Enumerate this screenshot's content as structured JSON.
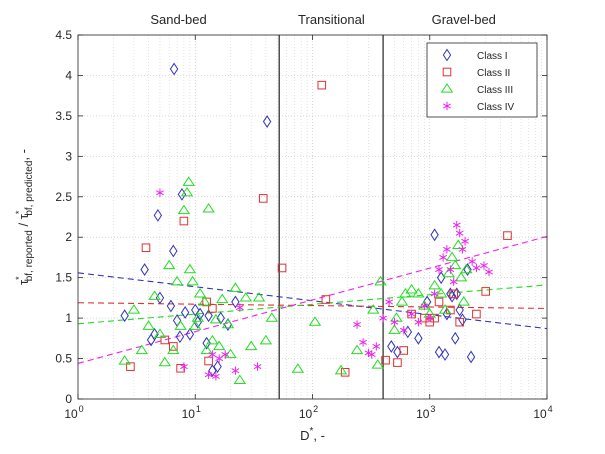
{
  "chart_data": {
    "type": "scatter",
    "x_scale": "log",
    "xlim": [
      1,
      10000
    ],
    "ylim": [
      0,
      4.5
    ],
    "grid": true,
    "legend_position": "top-right",
    "x_ticks": [
      {
        "value": 1,
        "base": "10",
        "exp": "0"
      },
      {
        "value": 10,
        "base": "10",
        "exp": "1"
      },
      {
        "value": 100,
        "base": "10",
        "exp": "2"
      },
      {
        "value": 1000,
        "base": "10",
        "exp": "3"
      },
      {
        "value": 10000,
        "base": "10",
        "exp": "4"
      }
    ],
    "y_ticks": [
      {
        "value": 0,
        "label": "0"
      },
      {
        "value": 0.5,
        "label": "0.5"
      },
      {
        "value": 1,
        "label": "1"
      },
      {
        "value": 1.5,
        "label": "1.5"
      },
      {
        "value": 2,
        "label": "2"
      },
      {
        "value": 2.5,
        "label": "2.5"
      },
      {
        "value": 3,
        "label": "3"
      },
      {
        "value": 3.5,
        "label": "3.5"
      },
      {
        "value": 4,
        "label": "4"
      },
      {
        "value": 4.5,
        "label": "4.5"
      }
    ],
    "xlabel": {
      "main": "D",
      "sup": "*",
      "rest": ", -"
    },
    "ylabel": {
      "tau": "τ",
      "sub1": "bf, reported",
      "sep": " / ",
      "sub2": "bf, predicted",
      "rest": ", -",
      "star": "*"
    },
    "boundaries": [
      52,
      400
    ],
    "regions": [
      {
        "label": "Sand-bed",
        "x": 7.2
      },
      {
        "label": "Transitional",
        "x": 145
      },
      {
        "label": "Gravel-bed",
        "x": 1950
      }
    ],
    "series": [
      {
        "name": "Class I",
        "marker": "diamond",
        "color": "#3333bb",
        "points": [
          [
            2.5,
            1.03
          ],
          [
            3.7,
            1.6
          ],
          [
            4.2,
            0.73
          ],
          [
            4.5,
            0.8
          ],
          [
            4.8,
            2.27
          ],
          [
            5.0,
            1.25
          ],
          [
            6.2,
            1.15
          ],
          [
            6.5,
            1.83
          ],
          [
            6.6,
            4.08
          ],
          [
            7.0,
            0.97
          ],
          [
            7.4,
            0.77
          ],
          [
            7.7,
            2.53
          ],
          [
            8.2,
            1.07
          ],
          [
            9.0,
            0.8
          ],
          [
            10.0,
            1.1
          ],
          [
            10.5,
            0.95
          ],
          [
            11.0,
            1.05
          ],
          [
            12.5,
            0.69
          ],
          [
            13.0,
            1.03
          ],
          [
            14.0,
            0.35
          ],
          [
            15.5,
            0.4
          ],
          [
            16.5,
            1.0
          ],
          [
            19.0,
            0.92
          ],
          [
            22.0,
            1.2
          ],
          [
            41.0,
            3.43
          ],
          [
            470,
            0.65
          ],
          [
            530,
            0.58
          ],
          [
            650,
            0.83
          ],
          [
            800,
            0.75
          ],
          [
            950,
            1.2
          ],
          [
            1100,
            2.03
          ],
          [
            1200,
            0.58
          ],
          [
            1250,
            1.5
          ],
          [
            1350,
            0.55
          ],
          [
            1400,
            1.05
          ],
          [
            1500,
            1.3
          ],
          [
            1550,
            1.27
          ],
          [
            1650,
            0.75
          ],
          [
            1700,
            1.3
          ],
          [
            1800,
            1.1
          ],
          [
            1900,
            0.98
          ],
          [
            2100,
            1.6
          ],
          [
            2250,
            0.52
          ]
        ]
      },
      {
        "name": "Class II",
        "marker": "square",
        "color": "#dd3333",
        "points": [
          [
            2.8,
            0.4
          ],
          [
            3.8,
            1.87
          ],
          [
            5.5,
            0.73
          ],
          [
            6.5,
            0.65
          ],
          [
            7.5,
            0.38
          ],
          [
            8.0,
            2.2
          ],
          [
            12.5,
            1.2
          ],
          [
            13.0,
            0.47
          ],
          [
            14.0,
            1.12
          ],
          [
            38.0,
            2.48
          ],
          [
            55.0,
            1.62
          ],
          [
            120.0,
            3.88
          ],
          [
            130.0,
            1.23
          ],
          [
            190.0,
            0.33
          ],
          [
            420,
            0.48
          ],
          [
            530,
            0.45
          ],
          [
            600,
            0.6
          ],
          [
            700,
            1.05
          ],
          [
            900,
            1.0
          ],
          [
            1000,
            0.95
          ],
          [
            1100,
            1.0
          ],
          [
            1200,
            1.2
          ],
          [
            1500,
            1.1
          ],
          [
            1600,
            1.3
          ],
          [
            1800,
            0.95
          ],
          [
            2500,
            1.05
          ],
          [
            3000,
            1.33
          ],
          [
            4600,
            2.02
          ]
        ]
      },
      {
        "name": "Class III",
        "marker": "triangle",
        "color": "#22dd22",
        "points": [
          [
            2.5,
            0.47
          ],
          [
            3.0,
            1.1
          ],
          [
            3.5,
            0.6
          ],
          [
            4.0,
            0.9
          ],
          [
            4.5,
            1.27
          ],
          [
            5.0,
            0.8
          ],
          [
            5.5,
            0.45
          ],
          [
            6.0,
            1.65
          ],
          [
            6.5,
            0.6
          ],
          [
            7.0,
            1.45
          ],
          [
            7.5,
            0.9
          ],
          [
            8.0,
            2.33
          ],
          [
            8.5,
            2.55
          ],
          [
            8.8,
            2.68
          ],
          [
            9.0,
            1.6
          ],
          [
            9.5,
            1.45
          ],
          [
            10.0,
            0.9
          ],
          [
            10.5,
            1.0
          ],
          [
            11.0,
            1.3
          ],
          [
            12.0,
            1.2
          ],
          [
            12.5,
            0.6
          ],
          [
            13.0,
            2.35
          ],
          [
            14.0,
            0.72
          ],
          [
            15.0,
            0.98
          ],
          [
            16.0,
            0.65
          ],
          [
            17.0,
            1.23
          ],
          [
            19.0,
            0.92
          ],
          [
            20.0,
            0.55
          ],
          [
            22.0,
            1.37
          ],
          [
            24.0,
            0.23
          ],
          [
            27.0,
            1.25
          ],
          [
            30.0,
            0.65
          ],
          [
            35.0,
            1.25
          ],
          [
            40.0,
            0.72
          ],
          [
            45.0,
            1.0
          ],
          [
            75.0,
            0.37
          ],
          [
            105.0,
            0.95
          ],
          [
            175.0,
            0.35
          ],
          [
            240.0,
            0.6
          ],
          [
            330.0,
            1.1
          ],
          [
            360.0,
            0.42
          ],
          [
            380.0,
            1.45
          ],
          [
            500,
            0.85
          ],
          [
            520,
            1.0
          ],
          [
            580,
            1.2
          ],
          [
            620,
            1.3
          ],
          [
            700,
            1.35
          ],
          [
            800,
            1.3
          ],
          [
            900,
            1.15
          ],
          [
            1000,
            1.05
          ],
          [
            1100,
            1.4
          ],
          [
            1250,
            1.3
          ],
          [
            1350,
            1.1
          ],
          [
            1450,
            1.55
          ],
          [
            1550,
            1.75
          ],
          [
            1650,
            1.65
          ],
          [
            1750,
            1.9
          ],
          [
            1850,
            1.5
          ],
          [
            1950,
            1.2
          ],
          [
            2050,
            1.6
          ]
        ]
      },
      {
        "name": "Class IV",
        "marker": "asterisk",
        "color": "#ee22ee",
        "points": [
          [
            5.0,
            2.55
          ],
          [
            8.0,
            0.4
          ],
          [
            13.0,
            0.3
          ],
          [
            14.0,
            0.55
          ],
          [
            15.0,
            0.28
          ],
          [
            16.0,
            0.5
          ],
          [
            18.0,
            0.55
          ],
          [
            22.0,
            0.35
          ],
          [
            24.0,
            1.13
          ],
          [
            34.0,
            0.4
          ],
          [
            240,
            0.92
          ],
          [
            270,
            0.7
          ],
          [
            300,
            0.57
          ],
          [
            320,
            0.55
          ],
          [
            350,
            0.65
          ],
          [
            400,
            1.0
          ],
          [
            450,
            1.2
          ],
          [
            500,
            0.95
          ],
          [
            600,
            0.85
          ],
          [
            700,
            1.05
          ],
          [
            800,
            0.95
          ],
          [
            900,
            1.15
          ],
          [
            1000,
            1.0
          ],
          [
            1100,
            1.3
          ],
          [
            1200,
            1.6
          ],
          [
            1300,
            1.75
          ],
          [
            1400,
            1.85
          ],
          [
            1500,
            1.6
          ],
          [
            1600,
            1.45
          ],
          [
            1700,
            2.15
          ],
          [
            1800,
            2.05
          ],
          [
            1900,
            1.85
          ],
          [
            2000,
            1.95
          ],
          [
            2300,
            1.7
          ],
          [
            2500,
            1.62
          ],
          [
            2900,
            1.65
          ],
          [
            3200,
            1.57
          ]
        ]
      }
    ],
    "trend_lines": [
      {
        "series": "Class I",
        "from": [
          1,
          1.56
        ],
        "to": [
          10000,
          0.87
        ]
      },
      {
        "series": "Class II",
        "from": [
          1,
          1.19
        ],
        "to": [
          10000,
          1.12
        ]
      },
      {
        "series": "Class III",
        "from": [
          1,
          0.93
        ],
        "to": [
          10000,
          1.41
        ]
      },
      {
        "series": "Class IV",
        "from": [
          1,
          0.44
        ],
        "to": [
          10000,
          2.01
        ]
      }
    ]
  }
}
